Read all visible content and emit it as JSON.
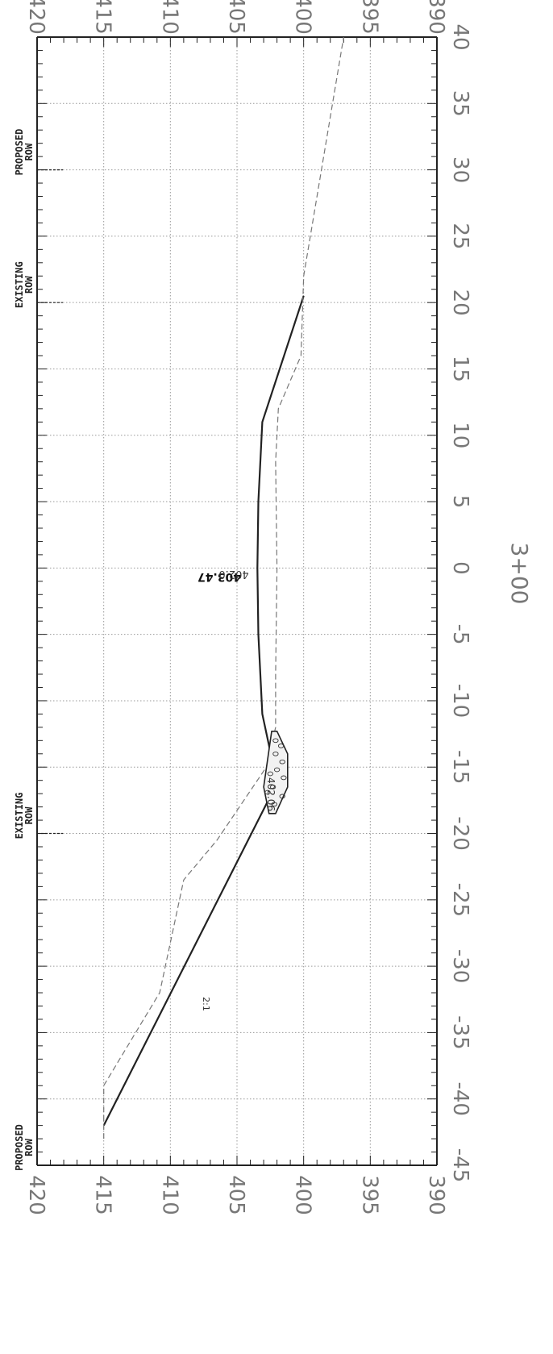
{
  "station": {
    "label": "3+00"
  },
  "elevation_labels_left": [
    "420",
    "415",
    "410",
    "405",
    "400",
    "395",
    "390"
  ],
  "elevation_labels_right": [
    "420",
    "415",
    "410",
    "405",
    "400",
    "395",
    "390"
  ],
  "offset_labels": [
    "-45",
    "-40",
    "-35",
    "-30",
    "-25",
    "-20",
    "-15",
    "-10",
    "-5",
    "0",
    "5",
    "10",
    "15",
    "20",
    "25",
    "30",
    "35",
    "40"
  ],
  "row_markers": [
    {
      "line1": "PROPOSED",
      "line2": "ROW",
      "offset": -45
    },
    {
      "line1": "EXISTING",
      "line2": "ROW",
      "offset": -20
    },
    {
      "line1": "EXISTING",
      "line2": "ROW",
      "offset": 20
    },
    {
      "line1": "PROPOSED",
      "line2": "ROW",
      "offset": 30
    }
  ],
  "annotations": {
    "existing_centerline": "403.47",
    "proposed_centerline": "402.0",
    "ditch_elevation": "402.06",
    "slope": "2:1"
  },
  "chart_data": {
    "type": "line",
    "orientation": "rotated 90° clockwise",
    "xlabel": "",
    "ylabel": "",
    "xlim": [
      -45,
      40
    ],
    "ylim": [
      390,
      420
    ],
    "x_ticks": [
      -45,
      -40,
      -35,
      -30,
      -25,
      -20,
      -15,
      -10,
      -5,
      0,
      5,
      10,
      15,
      20,
      25,
      30,
      35,
      40
    ],
    "y_ticks": [
      390,
      395,
      400,
      405,
      410,
      415,
      420
    ],
    "grid": true,
    "series": [
      {
        "style": "solid",
        "color": "#222222",
        "points": [
          [
            -42,
            415
          ],
          [
            -16.2,
            402.0
          ],
          [
            -11,
            403.1
          ],
          [
            -5,
            403.4
          ],
          [
            0,
            403.47
          ],
          [
            5,
            403.4
          ],
          [
            11,
            403.1
          ],
          [
            20.5,
            400.0
          ]
        ]
      },
      {
        "style": "dashed",
        "color": "#777777",
        "points": [
          [
            -43,
            415
          ],
          [
            -39,
            415
          ],
          [
            -32,
            410.8
          ],
          [
            -23.5,
            409.0
          ],
          [
            -20.5,
            406.5
          ],
          [
            -15,
            402.8
          ],
          [
            -12,
            402.1
          ],
          [
            -8,
            402.1
          ],
          [
            0,
            402.0
          ],
          [
            8,
            402.1
          ],
          [
            12,
            401.9
          ],
          [
            16,
            400.2
          ],
          [
            22,
            400.0
          ],
          [
            40,
            397.0
          ]
        ]
      }
    ]
  }
}
